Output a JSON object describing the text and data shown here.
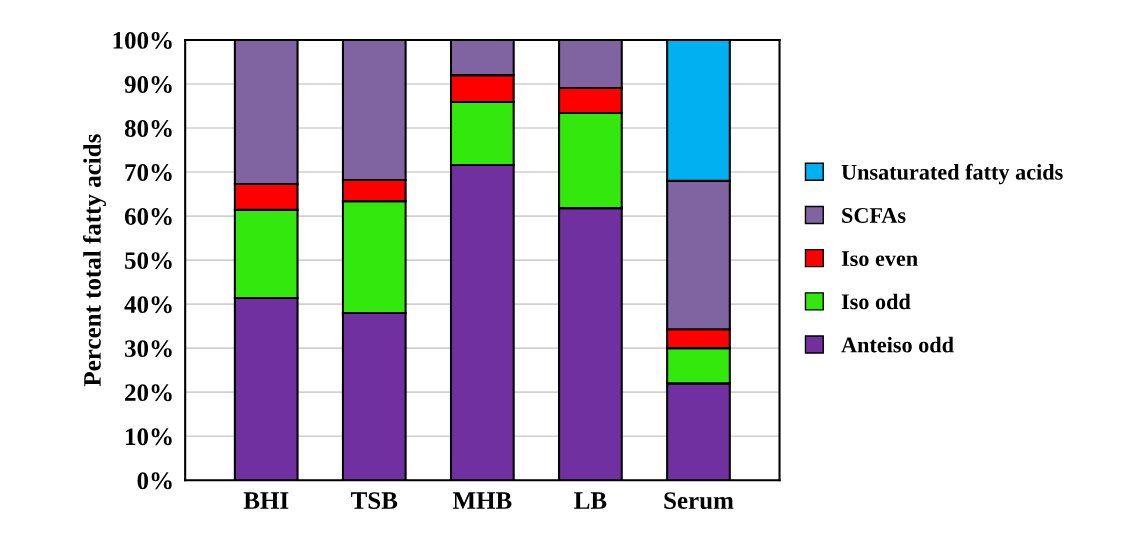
{
  "chart_data": {
    "type": "bar",
    "stacked": true,
    "ylabel": "Percent total fatty acids",
    "categories": [
      "BHI",
      "TSB",
      "MHB",
      "LB",
      "Serum"
    ],
    "series": [
      {
        "name": "Anteiso odd",
        "color": "#7030a0",
        "values": [
          41.4,
          38.0,
          71.6,
          61.8,
          22.0
        ]
      },
      {
        "name": "Iso odd",
        "color": "#33e80c",
        "values": [
          20.0,
          25.4,
          14.3,
          21.6,
          8.0
        ]
      },
      {
        "name": "Iso even",
        "color": "#ff0000",
        "values": [
          5.9,
          4.8,
          6.1,
          5.7,
          4.3
        ]
      },
      {
        "name": "SCFAs",
        "color": "#8064a2",
        "values": [
          32.7,
          31.8,
          8.0,
          10.9,
          33.7
        ]
      },
      {
        "name": "Unsaturated fatty acids",
        "color": "#00b0f0",
        "values": [
          null,
          null,
          null,
          null,
          32.0
        ]
      }
    ],
    "ylim": [
      0,
      100
    ],
    "yticks": [
      {
        "value": 0,
        "label": "0%"
      },
      {
        "value": 10,
        "label": "10%"
      },
      {
        "value": 20,
        "label": "20%"
      },
      {
        "value": 30,
        "label": "30%"
      },
      {
        "value": 40,
        "label": "40%"
      },
      {
        "value": 50,
        "label": "50%"
      },
      {
        "value": 60,
        "label": "60%"
      },
      {
        "value": 70,
        "label": "70%"
      },
      {
        "value": 80,
        "label": "80%"
      },
      {
        "value": 90,
        "label": "90%"
      },
      {
        "value": 100,
        "label": "100%"
      }
    ],
    "grid": "y",
    "legend": "right"
  }
}
